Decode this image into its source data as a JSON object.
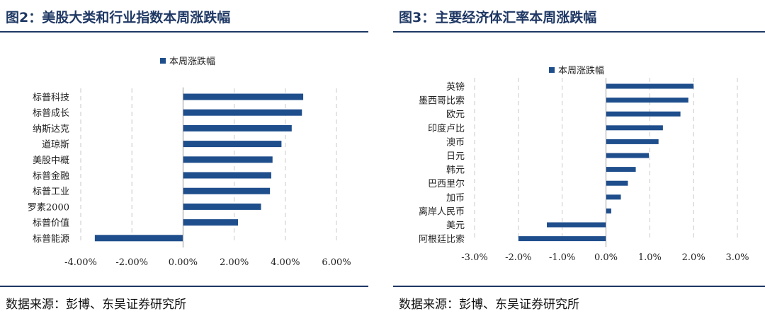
{
  "left": {
    "title": "图2：美股大类和行业指数本周涨跌幅",
    "source": "数据来源：彭博、东吴证券研究所",
    "chart_data": {
      "type": "bar",
      "orientation": "horizontal",
      "categories": [
        "标普科技",
        "标普成长",
        "纳斯达克",
        "道琼斯",
        "美股中概",
        "标普金融",
        "标普工业",
        "罗素2000",
        "标普价值",
        "标普能源"
      ],
      "series": [
        {
          "name": "本周涨跌幅",
          "values": [
            4.7,
            4.65,
            4.25,
            3.85,
            3.5,
            3.45,
            3.4,
            3.05,
            2.15,
            -3.45
          ]
        }
      ],
      "xlim": [
        -4,
        6
      ],
      "xticks": [
        -4,
        -2,
        0,
        2,
        4,
        6
      ],
      "tick_labels": [
        "-4.00%",
        "-2.00%",
        "0.00%",
        "2.00%",
        "4.00%",
        "6.00%"
      ],
      "grid": "vertical-dashed",
      "legend": "top-center",
      "bar_color": "#1f4e8c"
    }
  },
  "right": {
    "title": "图3：主要经济体汇率本周涨跌幅",
    "source": "数据来源：彭博、东吴证券研究所",
    "chart_data": {
      "type": "bar",
      "orientation": "horizontal",
      "categories": [
        "英镑",
        "墨西哥比索",
        "欧元",
        "印度卢比",
        "澳币",
        "日元",
        "韩元",
        "巴西里尔",
        "加币",
        "离岸人民币",
        "美元",
        "阿根廷比索"
      ],
      "series": [
        {
          "name": "本周涨跌幅",
          "values": [
            2.0,
            1.88,
            1.7,
            1.3,
            1.2,
            0.98,
            0.68,
            0.5,
            0.34,
            0.12,
            -1.35,
            -2.0
          ]
        }
      ],
      "xlim": [
        -3,
        3
      ],
      "xticks": [
        -3,
        -2,
        -1,
        0,
        1,
        2,
        3
      ],
      "tick_labels": [
        "-3.0%",
        "-2.0%",
        "-1.0%",
        "0.0%",
        "1.0%",
        "2.0%",
        "3.0%"
      ],
      "grid": "vertical-dashed",
      "legend": "top-left",
      "bar_color": "#1f4e8c"
    }
  }
}
